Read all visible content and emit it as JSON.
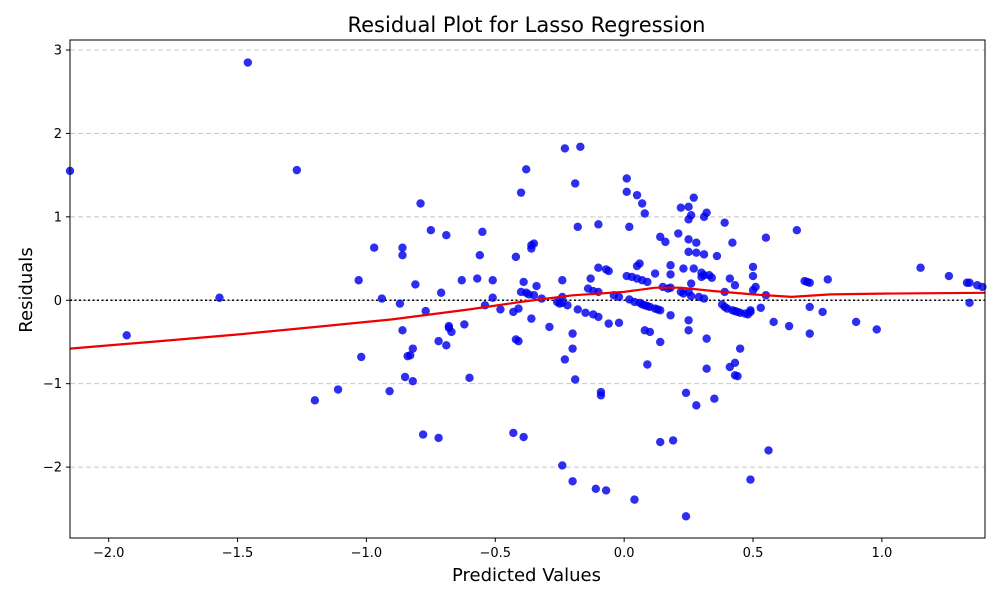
{
  "chart_data": {
    "type": "scatter",
    "title": "Residual Plot for Lasso Regression",
    "xlabel": "Predicted Values",
    "ylabel": "Residuals",
    "xlim": [
      -2.15,
      1.4
    ],
    "ylim": [
      -2.85,
      3.12
    ],
    "x_ticks": [
      -2.0,
      -1.5,
      -1.0,
      -0.5,
      0.0,
      0.5,
      1.0
    ],
    "x_tick_labels": [
      "−2.0",
      "−1.5",
      "−1.0",
      "−0.5",
      "0.0",
      "0.5",
      "1.0"
    ],
    "y_ticks": [
      -2,
      -1,
      0,
      1,
      2,
      3
    ],
    "y_tick_labels": [
      "−2",
      "−1",
      "0",
      "1",
      "2",
      "3"
    ],
    "grid": "horizontal dashed",
    "legend": "none",
    "colors": {
      "points": "#0000ee",
      "trend": "#ee0000",
      "zero_line": "#000000",
      "grid": "#c8c8c8"
    },
    "points": [
      [
        -2.15,
        1.55
      ],
      [
        -1.93,
        -0.42
      ],
      [
        -1.57,
        0.03
      ],
      [
        -1.46,
        2.85
      ],
      [
        -1.27,
        1.56
      ],
      [
        -1.2,
        -1.2
      ],
      [
        -1.11,
        -1.07
      ],
      [
        -1.03,
        0.24
      ],
      [
        -1.02,
        -0.68
      ],
      [
        -0.97,
        0.63
      ],
      [
        -0.94,
        0.02
      ],
      [
        -0.91,
        -1.09
      ],
      [
        -0.87,
        -0.04
      ],
      [
        -0.86,
        0.63
      ],
      [
        -0.86,
        0.54
      ],
      [
        -0.86,
        -0.36
      ],
      [
        -0.85,
        -0.92
      ],
      [
        -0.84,
        -0.67
      ],
      [
        -0.83,
        -0.66
      ],
      [
        -0.82,
        -0.58
      ],
      [
        -0.82,
        -0.97
      ],
      [
        -0.81,
        0.19
      ],
      [
        -0.79,
        1.16
      ],
      [
        -0.78,
        -1.61
      ],
      [
        -0.77,
        -0.13
      ],
      [
        -0.75,
        0.84
      ],
      [
        -0.72,
        -0.49
      ],
      [
        -0.72,
        -1.65
      ],
      [
        -0.71,
        0.09
      ],
      [
        -0.69,
        0.78
      ],
      [
        -0.69,
        -0.54
      ],
      [
        -0.68,
        -0.33
      ],
      [
        -0.68,
        -0.31
      ],
      [
        -0.67,
        -0.38
      ],
      [
        -0.63,
        0.24
      ],
      [
        -0.62,
        -0.29
      ],
      [
        -0.6,
        -0.93
      ],
      [
        -0.57,
        0.26
      ],
      [
        -0.56,
        0.54
      ],
      [
        -0.55,
        0.82
      ],
      [
        -0.54,
        -0.06
      ],
      [
        -0.51,
        0.24
      ],
      [
        -0.51,
        0.03
      ],
      [
        -0.48,
        -0.11
      ],
      [
        -0.43,
        -1.59
      ],
      [
        -0.43,
        -0.14
      ],
      [
        -0.42,
        -0.47
      ],
      [
        -0.42,
        0.52
      ],
      [
        -0.41,
        -0.1
      ],
      [
        -0.41,
        -0.49
      ],
      [
        -0.4,
        1.29
      ],
      [
        -0.4,
        0.1
      ],
      [
        -0.39,
        0.22
      ],
      [
        -0.39,
        -1.64
      ],
      [
        -0.38,
        1.57
      ],
      [
        -0.38,
        0.09
      ],
      [
        -0.37,
        0.07
      ],
      [
        -0.36,
        0.62
      ],
      [
        -0.36,
        0.66
      ],
      [
        -0.36,
        -0.22
      ],
      [
        -0.35,
        0.06
      ],
      [
        -0.35,
        0.68
      ],
      [
        -0.34,
        0.17
      ],
      [
        -0.32,
        0.02
      ],
      [
        -0.29,
        -0.32
      ],
      [
        -0.26,
        -0.02
      ],
      [
        -0.25,
        -0.04
      ],
      [
        -0.24,
        0.24
      ],
      [
        -0.24,
        -1.98
      ],
      [
        -0.24,
        -0.03
      ],
      [
        -0.24,
        0.04
      ],
      [
        -0.23,
        -0.71
      ],
      [
        -0.23,
        1.82
      ],
      [
        -0.22,
        -0.06
      ],
      [
        -0.2,
        -2.17
      ],
      [
        -0.2,
        -0.58
      ],
      [
        -0.2,
        -0.4
      ],
      [
        -0.19,
        -0.95
      ],
      [
        -0.19,
        1.4
      ],
      [
        -0.18,
        0.88
      ],
      [
        -0.18,
        -0.11
      ],
      [
        -0.17,
        1.84
      ],
      [
        -0.15,
        -0.15
      ],
      [
        -0.14,
        0.14
      ],
      [
        -0.13,
        0.26
      ],
      [
        -0.12,
        -0.17
      ],
      [
        -0.12,
        0.11
      ],
      [
        -0.11,
        -2.26
      ],
      [
        -0.1,
        0.91
      ],
      [
        -0.1,
        0.1
      ],
      [
        -0.1,
        0.39
      ],
      [
        -0.1,
        -0.2
      ],
      [
        -0.09,
        -1.14
      ],
      [
        -0.09,
        -1.1
      ],
      [
        -0.07,
        -2.28
      ],
      [
        -0.07,
        0.37
      ],
      [
        -0.06,
        -0.28
      ],
      [
        -0.06,
        0.35
      ],
      [
        -0.04,
        0.06
      ],
      [
        -0.02,
        -0.27
      ],
      [
        -0.02,
        0.04
      ],
      [
        0.01,
        1.46
      ],
      [
        0.01,
        0.29
      ],
      [
        0.01,
        1.3
      ],
      [
        0.02,
        0.01
      ],
      [
        0.02,
        0.88
      ],
      [
        0.03,
        0.28
      ],
      [
        0.04,
        -2.39
      ],
      [
        0.04,
        -0.02
      ],
      [
        0.05,
        0.41
      ],
      [
        0.05,
        1.26
      ],
      [
        0.05,
        0.26
      ],
      [
        0.06,
        0.44
      ],
      [
        0.06,
        -0.03
      ],
      [
        0.07,
        1.16
      ],
      [
        0.07,
        0.24
      ],
      [
        0.07,
        -0.05
      ],
      [
        0.08,
        1.04
      ],
      [
        0.08,
        -0.06
      ],
      [
        0.08,
        -0.36
      ],
      [
        0.09,
        -0.07
      ],
      [
        0.09,
        0.22
      ],
      [
        0.09,
        -0.77
      ],
      [
        0.1,
        -0.08
      ],
      [
        0.1,
        -0.38
      ],
      [
        0.12,
        0.32
      ],
      [
        0.12,
        -0.1
      ],
      [
        0.13,
        -0.11
      ],
      [
        0.14,
        -0.12
      ],
      [
        0.14,
        0.76
      ],
      [
        0.14,
        -1.7
      ],
      [
        0.14,
        -0.5
      ],
      [
        0.15,
        0.16
      ],
      [
        0.16,
        0.7
      ],
      [
        0.17,
        0.14
      ],
      [
        0.18,
        0.42
      ],
      [
        0.18,
        0.31
      ],
      [
        0.18,
        -0.18
      ],
      [
        0.18,
        0.15
      ],
      [
        0.19,
        -1.68
      ],
      [
        0.21,
        0.8
      ],
      [
        0.22,
        1.11
      ],
      [
        0.22,
        0.1
      ],
      [
        0.23,
        0.38
      ],
      [
        0.23,
        0.08
      ],
      [
        0.24,
        -2.59
      ],
      [
        0.24,
        -1.11
      ],
      [
        0.25,
        1.12
      ],
      [
        0.25,
        0.1
      ],
      [
        0.25,
        0.73
      ],
      [
        0.25,
        -0.36
      ],
      [
        0.25,
        0.97
      ],
      [
        0.25,
        -0.24
      ],
      [
        0.25,
        0.58
      ],
      [
        0.26,
        0.05
      ],
      [
        0.26,
        1.02
      ],
      [
        0.26,
        0.2
      ],
      [
        0.27,
        1.23
      ],
      [
        0.27,
        0.38
      ],
      [
        0.28,
        -1.26
      ],
      [
        0.28,
        0.69
      ],
      [
        0.28,
        0.57
      ],
      [
        0.29,
        0.04
      ],
      [
        0.3,
        0.28
      ],
      [
        0.3,
        0.33
      ],
      [
        0.31,
        0.3
      ],
      [
        0.31,
        0.02
      ],
      [
        0.31,
        1.0
      ],
      [
        0.31,
        0.55
      ],
      [
        0.32,
        1.05
      ],
      [
        0.32,
        -0.46
      ],
      [
        0.32,
        -0.82
      ],
      [
        0.33,
        0.3
      ],
      [
        0.34,
        0.27
      ],
      [
        0.35,
        -1.18
      ],
      [
        0.36,
        0.53
      ],
      [
        0.38,
        -0.05
      ],
      [
        0.39,
        0.93
      ],
      [
        0.39,
        -0.08
      ],
      [
        0.39,
        0.1
      ],
      [
        0.4,
        -0.1
      ],
      [
        0.41,
        0.26
      ],
      [
        0.41,
        -0.8
      ],
      [
        0.42,
        -0.12
      ],
      [
        0.42,
        0.69
      ],
      [
        0.43,
        -0.75
      ],
      [
        0.43,
        -0.13
      ],
      [
        0.43,
        -0.9
      ],
      [
        0.43,
        0.18
      ],
      [
        0.44,
        -0.91
      ],
      [
        0.44,
        -0.14
      ],
      [
        0.45,
        -0.58
      ],
      [
        0.45,
        -0.15
      ],
      [
        0.47,
        -0.16
      ],
      [
        0.48,
        -0.17
      ],
      [
        0.49,
        -0.14
      ],
      [
        0.49,
        -0.12
      ],
      [
        0.49,
        -2.15
      ],
      [
        0.5,
        0.12
      ],
      [
        0.5,
        0.4
      ],
      [
        0.5,
        0.29
      ],
      [
        0.51,
        0.16
      ],
      [
        0.53,
        -0.09
      ],
      [
        0.55,
        0.75
      ],
      [
        0.55,
        0.06
      ],
      [
        0.56,
        -1.8
      ],
      [
        0.58,
        -0.26
      ],
      [
        0.64,
        -0.31
      ],
      [
        0.67,
        0.84
      ],
      [
        0.7,
        0.23
      ],
      [
        0.71,
        0.22
      ],
      [
        0.72,
        0.21
      ],
      [
        0.72,
        -0.08
      ],
      [
        0.72,
        -0.4
      ],
      [
        0.77,
        -0.14
      ],
      [
        0.79,
        0.25
      ],
      [
        0.9,
        -0.26
      ],
      [
        0.98,
        -0.35
      ],
      [
        1.15,
        0.39
      ],
      [
        1.26,
        0.29
      ],
      [
        1.33,
        0.21
      ],
      [
        1.34,
        0.21
      ],
      [
        1.34,
        -0.03
      ],
      [
        1.37,
        0.18
      ],
      [
        1.39,
        0.16
      ]
    ],
    "trend_line": [
      [
        -2.15,
        -0.58
      ],
      [
        -1.8,
        -0.49
      ],
      [
        -1.5,
        -0.41
      ],
      [
        -1.2,
        -0.32
      ],
      [
        -0.9,
        -0.23
      ],
      [
        -0.6,
        -0.11
      ],
      [
        -0.4,
        -0.02
      ],
      [
        -0.2,
        0.06
      ],
      [
        0.0,
        0.1
      ],
      [
        0.12,
        0.15
      ],
      [
        0.22,
        0.15
      ],
      [
        0.35,
        0.11
      ],
      [
        0.5,
        0.07
      ],
      [
        0.65,
        0.04
      ],
      [
        0.8,
        0.07
      ],
      [
        1.0,
        0.08
      ],
      [
        1.2,
        0.085
      ],
      [
        1.4,
        0.09
      ]
    ]
  }
}
